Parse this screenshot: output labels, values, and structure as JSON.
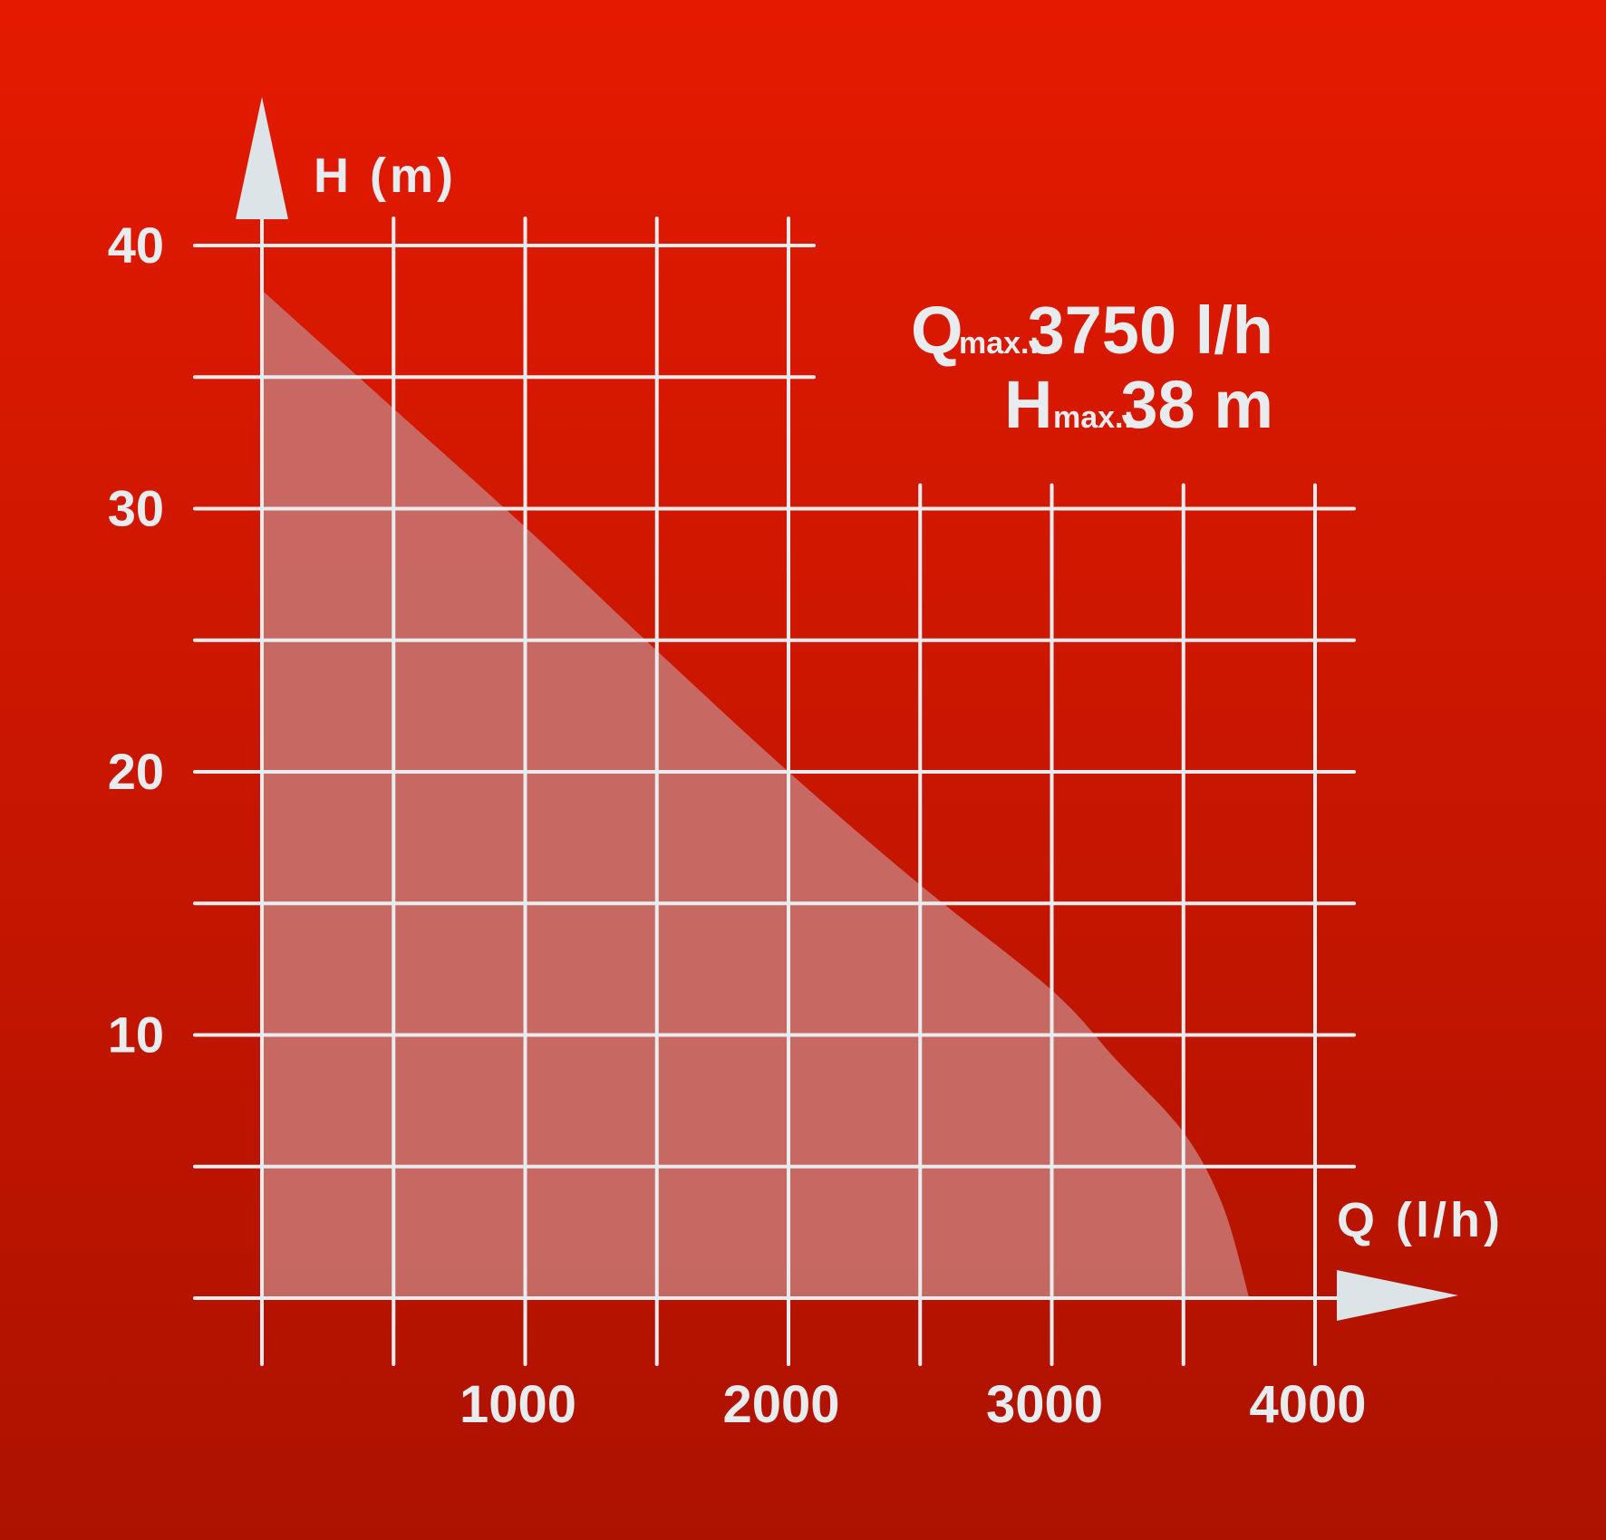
{
  "chart_data": {
    "type": "area",
    "xlabel": "Q (l/h)",
    "ylabel": "H (m)",
    "xlim": [
      0,
      4000
    ],
    "ylim": [
      0,
      40
    ],
    "x_ticks": [
      {
        "value": 1000,
        "label": "1000"
      },
      {
        "value": 2000,
        "label": "2000"
      },
      {
        "value": 3000,
        "label": "3000"
      },
      {
        "value": 4000,
        "label": "4000"
      }
    ],
    "y_ticks": [
      {
        "value": 10,
        "label": "10"
      },
      {
        "value": 20,
        "label": "20"
      },
      {
        "value": 30,
        "label": "30"
      },
      {
        "value": 40,
        "label": "40"
      }
    ],
    "grid": true,
    "series": [
      {
        "x": [
          0,
          500,
          1000,
          1500,
          2000,
          2500,
          3000,
          3250,
          3500,
          3650,
          3750
        ],
        "y": [
          38.3,
          33.8,
          29.3,
          24.6,
          20,
          15.7,
          11.7,
          9,
          6.3,
          3.5,
          0
        ]
      }
    ],
    "annotations": {
      "qmax": {
        "symbol": "Q",
        "sub": "max.:",
        "value": "3750 l/h"
      },
      "hmax": {
        "symbol": "H",
        "sub": "max.:",
        "value": "38 m"
      }
    }
  },
  "colors": {
    "background_top": "#e41a00",
    "background_bottom": "#ad1200",
    "grid": "#e8ecef",
    "area_fill": "#c8706a"
  }
}
